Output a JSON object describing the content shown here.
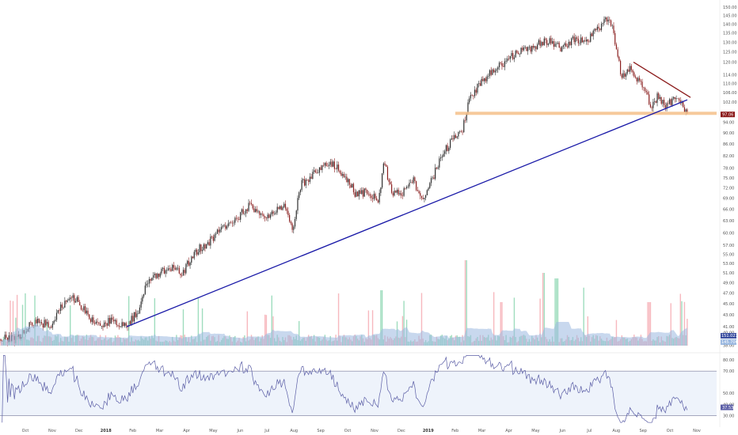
{
  "chart_data": {
    "type": "candlestick",
    "price_axis": {
      "ticks": [
        "150.00",
        "145.00",
        "140.00",
        "135.00",
        "130.00",
        "125.00",
        "120.00",
        "114.00",
        "110.00",
        "106.00",
        "102.00",
        "97.00",
        "94.00",
        "90.00",
        "86.00",
        "82.00",
        "78.00",
        "75.00",
        "72.00",
        "69.00",
        "66.00",
        "63.00",
        "60.00",
        "57.00",
        "55.00",
        "53.00",
        "51.00",
        "49.00",
        "47.00",
        "45.00",
        "43.00",
        "41.00",
        "40.00",
        "38.00"
      ],
      "scale": "log",
      "current_price_label": "97.06",
      "volume_label": "151.027M",
      "volume_sublabel": "145.70K"
    },
    "x_axis": {
      "ticks": [
        "Oct",
        "Nov",
        "Dec",
        "2018",
        "Feb",
        "Mar",
        "Apr",
        "May",
        "Jun",
        "Jul",
        "Aug",
        "Sep",
        "Oct",
        "Nov",
        "Dec",
        "2019",
        "Feb",
        "Mar",
        "Apr",
        "May",
        "Jun",
        "Jul",
        "Aug",
        "Sep",
        "Oct",
        "Nov"
      ],
      "bold_ticks": [
        "2018",
        "2019"
      ]
    },
    "anchors": [
      {
        "x": 0,
        "p": 39
      },
      {
        "x": 20,
        "p": 39
      },
      {
        "x": 45,
        "p": 42
      },
      {
        "x": 65,
        "p": 41
      },
      {
        "x": 80,
        "p": 45
      },
      {
        "x": 95,
        "p": 46
      },
      {
        "x": 110,
        "p": 43
      },
      {
        "x": 125,
        "p": 41
      },
      {
        "x": 140,
        "p": 42
      },
      {
        "x": 160,
        "p": 41
      },
      {
        "x": 175,
        "p": 44
      },
      {
        "x": 185,
        "p": 49
      },
      {
        "x": 200,
        "p": 51
      },
      {
        "x": 215,
        "p": 52
      },
      {
        "x": 230,
        "p": 51
      },
      {
        "x": 250,
        "p": 56
      },
      {
        "x": 265,
        "p": 58
      },
      {
        "x": 280,
        "p": 61
      },
      {
        "x": 300,
        "p": 64
      },
      {
        "x": 315,
        "p": 67
      },
      {
        "x": 330,
        "p": 64
      },
      {
        "x": 345,
        "p": 65
      },
      {
        "x": 358,
        "p": 67
      },
      {
        "x": 370,
        "p": 61
      },
      {
        "x": 380,
        "p": 73
      },
      {
        "x": 400,
        "p": 77
      },
      {
        "x": 415,
        "p": 80
      },
      {
        "x": 430,
        "p": 77
      },
      {
        "x": 440,
        "p": 74
      },
      {
        "x": 450,
        "p": 70
      },
      {
        "x": 465,
        "p": 71
      },
      {
        "x": 478,
        "p": 68
      },
      {
        "x": 485,
        "p": 80
      },
      {
        "x": 495,
        "p": 70
      },
      {
        "x": 510,
        "p": 71
      },
      {
        "x": 522,
        "p": 75
      },
      {
        "x": 532,
        "p": 68
      },
      {
        "x": 545,
        "p": 74
      },
      {
        "x": 558,
        "p": 82
      },
      {
        "x": 570,
        "p": 87
      },
      {
        "x": 585,
        "p": 92
      },
      {
        "x": 592,
        "p": 103
      },
      {
        "x": 600,
        "p": 107
      },
      {
        "x": 615,
        "p": 113
      },
      {
        "x": 630,
        "p": 118
      },
      {
        "x": 650,
        "p": 124
      },
      {
        "x": 670,
        "p": 127
      },
      {
        "x": 690,
        "p": 131
      },
      {
        "x": 710,
        "p": 127
      },
      {
        "x": 725,
        "p": 132
      },
      {
        "x": 740,
        "p": 130
      },
      {
        "x": 755,
        "p": 137
      },
      {
        "x": 765,
        "p": 144
      },
      {
        "x": 772,
        "p": 140
      },
      {
        "x": 778,
        "p": 128
      },
      {
        "x": 785,
        "p": 113
      },
      {
        "x": 795,
        "p": 118
      },
      {
        "x": 805,
        "p": 112
      },
      {
        "x": 815,
        "p": 108
      },
      {
        "x": 822,
        "p": 99
      },
      {
        "x": 830,
        "p": 104
      },
      {
        "x": 840,
        "p": 101
      },
      {
        "x": 850,
        "p": 103
      },
      {
        "x": 860,
        "p": 101
      },
      {
        "x": 870,
        "p": 97
      }
    ],
    "rsi": {
      "ticks": [
        "80.00",
        "70.00",
        "50.00",
        "40.00",
        "30.00"
      ],
      "upper_band": 70,
      "lower_band": 30,
      "current_label": "37.53"
    },
    "trendlines": [
      {
        "name": "ascending-support",
        "color": "#1a1aa8",
        "from": {
          "x": 160,
          "p": 41
        },
        "to": {
          "x": 868,
          "p": 103
        }
      },
      {
        "name": "descending-resistance",
        "color": "#8b1a1a",
        "from": {
          "x": 800,
          "p": 120
        },
        "to": {
          "x": 872,
          "p": 104
        }
      }
    ],
    "support_zone": {
      "color": "#f5c08a",
      "x_start": 575,
      "x_end": 905,
      "p": 97.5
    },
    "colors": {
      "up": "#2e2e2e",
      "down": "#8b2020",
      "volume_up": "#7fd1a8",
      "volume_down": "#f4a0a8",
      "volume_ma": "#9ab8e0",
      "rsi_line": "#5b5ea6",
      "rsi_band_fill": "#eef3fb"
    }
  }
}
